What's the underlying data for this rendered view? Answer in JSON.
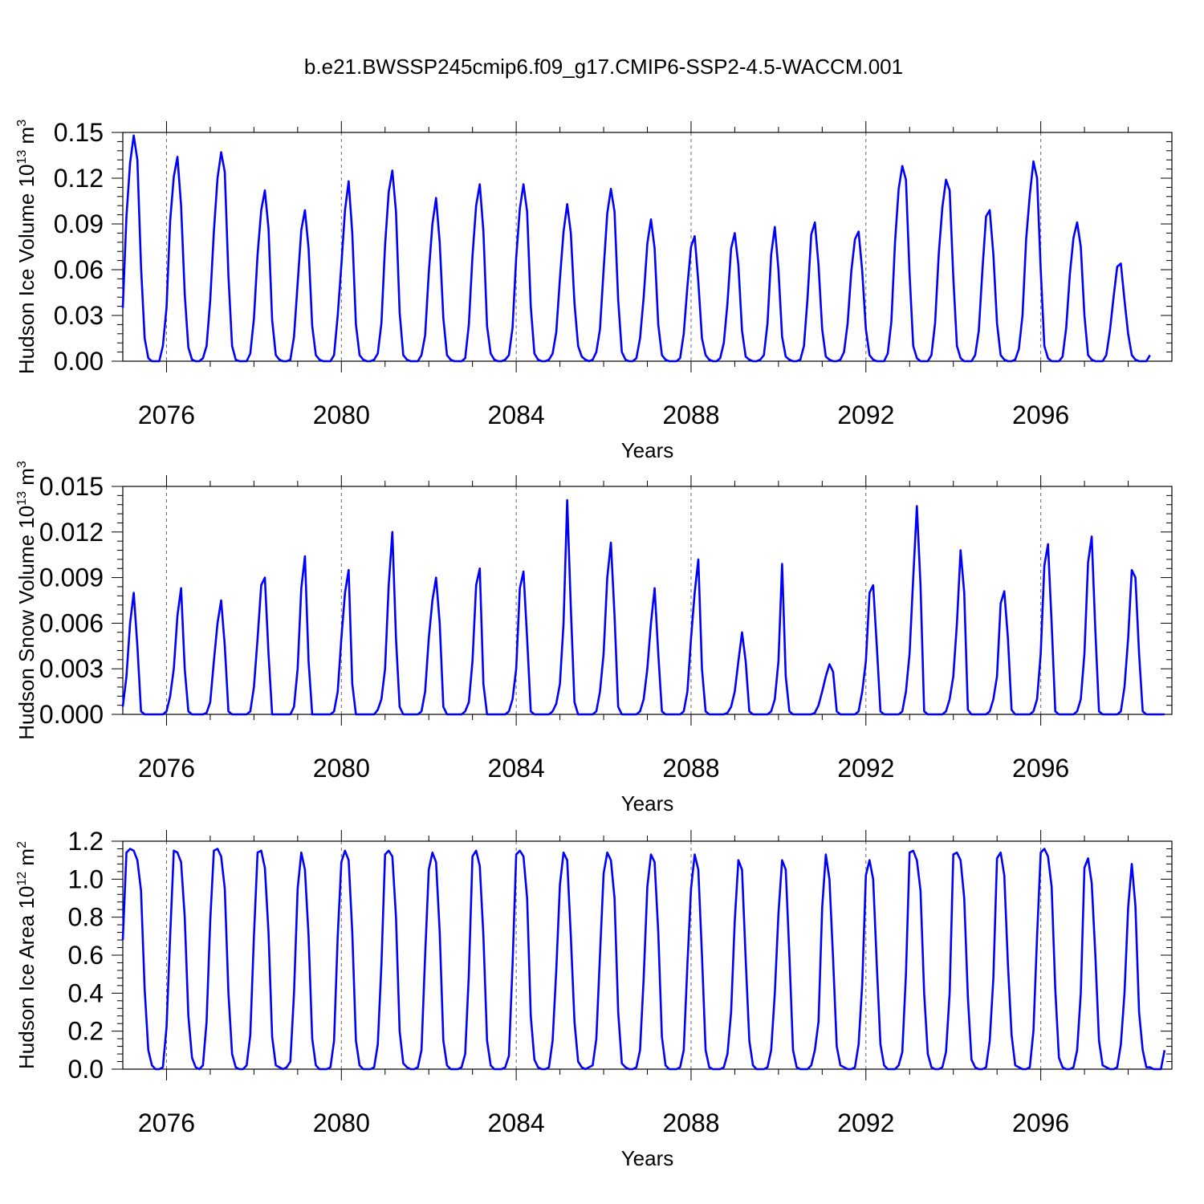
{
  "figure": {
    "title": "b.e21.BWSSP245cmip6.f09_g17.CMIP6-SSP2-4.5-WACCM.001",
    "line_color": "#0000ff",
    "start_year": 2075,
    "end_year": 2099,
    "xticks": [
      2076,
      2080,
      2084,
      2088,
      2092,
      2096
    ],
    "xticklabels": [
      "2076",
      "2080",
      "2084",
      "2088",
      "2092",
      "2096"
    ]
  },
  "chart_data": [
    {
      "type": "line",
      "title": "",
      "xlabel": "Years",
      "ylabel_main": "Hudson Ice Volume 10",
      "ylabel_exp": "13",
      "ylabel_unit": " m",
      "ylabel_unit_exp": "3",
      "ylim": [
        0,
        0.15
      ],
      "yticks": [
        0,
        0.03,
        0.06,
        0.09,
        0.12,
        0.15
      ],
      "yticklabels": [
        "0.00",
        "0.03",
        "0.06",
        "0.09",
        "0.12",
        "0.15"
      ],
      "xlim": [
        2075,
        2099
      ],
      "series": [
        {
          "name": "Hudson Ice Volume",
          "start_x": 2075.0,
          "step": 0.08333,
          "values": [
            0.035,
            0.095,
            0.13,
            0.148,
            0.132,
            0.062,
            0.015,
            0.002,
            0,
            0,
            0,
            0.01,
            0.035,
            0.092,
            0.121,
            0.134,
            0.102,
            0.044,
            0.009,
            0.001,
            0,
            0,
            0.002,
            0.01,
            0.04,
            0.085,
            0.12,
            0.137,
            0.124,
            0.056,
            0.01,
            0.001,
            0,
            0,
            0,
            0.005,
            0.028,
            0.07,
            0.099,
            0.112,
            0.087,
            0.027,
            0.004,
            0.001,
            0,
            0,
            0.001,
            0.016,
            0.051,
            0.086,
            0.099,
            0.074,
            0.023,
            0.004,
            0.001,
            0,
            0,
            0,
            0.004,
            0.03,
            0.063,
            0.099,
            0.118,
            0.084,
            0.024,
            0.004,
            0.001,
            0,
            0,
            0.001,
            0.005,
            0.025,
            0.076,
            0.111,
            0.125,
            0.098,
            0.032,
            0.004,
            0.001,
            0,
            0,
            0,
            0.004,
            0.017,
            0.058,
            0.09,
            0.107,
            0.078,
            0.028,
            0.004,
            0.001,
            0,
            0,
            0,
            0.002,
            0.024,
            0.069,
            0.102,
            0.116,
            0.085,
            0.023,
            0.005,
            0.001,
            0,
            0,
            0.001,
            0.004,
            0.022,
            0.068,
            0.1,
            0.116,
            0.098,
            0.036,
            0.005,
            0.001,
            0,
            0,
            0.001,
            0.005,
            0.019,
            0.054,
            0.085,
            0.103,
            0.084,
            0.038,
            0.01,
            0.003,
            0.001,
            0,
            0.001,
            0.006,
            0.021,
            0.06,
            0.097,
            0.113,
            0.098,
            0.04,
            0.006,
            0.001,
            0,
            0,
            0.002,
            0.015,
            0.042,
            0.077,
            0.093,
            0.074,
            0.024,
            0.004,
            0.001,
            0,
            0,
            0,
            0.002,
            0.018,
            0.049,
            0.075,
            0.082,
            0.052,
            0.015,
            0.004,
            0.001,
            0,
            0,
            0.002,
            0.012,
            0.038,
            0.074,
            0.084,
            0.063,
            0.02,
            0.003,
            0.001,
            0,
            0,
            0.001,
            0.004,
            0.025,
            0.07,
            0.088,
            0.06,
            0.016,
            0.003,
            0.001,
            0,
            0,
            0.001,
            0.01,
            0.042,
            0.083,
            0.091,
            0.063,
            0.021,
            0.003,
            0.001,
            0,
            0,
            0.001,
            0.006,
            0.025,
            0.059,
            0.08,
            0.085,
            0.059,
            0.021,
            0.004,
            0.001,
            0,
            0,
            0,
            0.005,
            0.026,
            0.078,
            0.113,
            0.128,
            0.119,
            0.057,
            0.01,
            0.002,
            0,
            0,
            0,
            0.004,
            0.025,
            0.07,
            0.101,
            0.119,
            0.112,
            0.055,
            0.01,
            0.002,
            0,
            0,
            0,
            0.004,
            0.02,
            0.06,
            0.095,
            0.099,
            0.07,
            0.025,
            0.004,
            0.001,
            0,
            0,
            0.001,
            0.008,
            0.03,
            0.08,
            0.109,
            0.131,
            0.12,
            0.06,
            0.01,
            0.002,
            0,
            0,
            0,
            0.003,
            0.022,
            0.057,
            0.081,
            0.091,
            0.075,
            0.03,
            0.004,
            0.001,
            0,
            0,
            0,
            0.004,
            0.02,
            0.042,
            0.062,
            0.064,
            0.04,
            0.018,
            0.004,
            0.001,
            0,
            0,
            0,
            0.004
          ]
        }
      ]
    },
    {
      "type": "line",
      "title": "",
      "xlabel": "Years",
      "ylabel_main": "Hudson Snow Volume 10",
      "ylabel_exp": "13",
      "ylabel_unit": " m",
      "ylabel_unit_exp": "3",
      "ylim": [
        0,
        0.015
      ],
      "yticks": [
        0,
        0.003,
        0.006,
        0.009,
        0.012,
        0.015
      ],
      "yticklabels": [
        "0.000",
        "0.003",
        "0.006",
        "0.009",
        "0.012",
        "0.015"
      ],
      "xlim": [
        2075,
        2099
      ],
      "series": [
        {
          "name": "Hudson Snow Volume",
          "start_x": 2075.0,
          "step": 0.08333,
          "values": [
            0.0005,
            0.0025,
            0.006,
            0.008,
            0.0045,
            0.0002,
            0,
            0,
            0,
            0,
            0,
            0,
            0.0002,
            0.0012,
            0.003,
            0.0065,
            0.0083,
            0.003,
            0.0002,
            0,
            0,
            0,
            0,
            0.0001,
            0.0008,
            0.0035,
            0.006,
            0.0075,
            0.0045,
            0.0002,
            0,
            0,
            0,
            0,
            0,
            0.0002,
            0.0018,
            0.005,
            0.0085,
            0.009,
            0.004,
            0,
            0,
            0,
            0,
            0,
            0,
            0.0005,
            0.003,
            0.0083,
            0.0104,
            0.0035,
            0,
            0,
            0,
            0,
            0,
            0,
            0.0002,
            0.0015,
            0.005,
            0.008,
            0.0095,
            0.002,
            0,
            0,
            0,
            0,
            0,
            0,
            0.0003,
            0.001,
            0.003,
            0.0085,
            0.012,
            0.005,
            0.0005,
            0,
            0,
            0,
            0,
            0,
            0.0002,
            0.0015,
            0.005,
            0.0075,
            0.009,
            0.006,
            0.0005,
            0,
            0,
            0,
            0,
            0,
            0.0002,
            0.0008,
            0.0035,
            0.0085,
            0.0096,
            0.002,
            0,
            0,
            0,
            0,
            0,
            0,
            0.0002,
            0.001,
            0.003,
            0.0083,
            0.0094,
            0.005,
            0.0002,
            0,
            0,
            0,
            0,
            0,
            0.0002,
            0.0007,
            0.002,
            0.006,
            0.0141,
            0.007,
            0.0008,
            0,
            0,
            0,
            0,
            0,
            0.0002,
            0.0015,
            0.004,
            0.009,
            0.0113,
            0.0065,
            0.0005,
            0,
            0,
            0,
            0,
            0,
            0.0002,
            0.001,
            0.003,
            0.006,
            0.0083,
            0.004,
            0.0002,
            0,
            0,
            0,
            0,
            0,
            0.0002,
            0.0015,
            0.005,
            0.008,
            0.0102,
            0.003,
            0.0002,
            0,
            0,
            0,
            0,
            0,
            0.0001,
            0.0005,
            0.0015,
            0.0035,
            0.0054,
            0.0035,
            0.0002,
            0,
            0,
            0,
            0,
            0,
            0.0002,
            0.001,
            0.0035,
            0.0099,
            0.0025,
            0.0002,
            0,
            0,
            0,
            0,
            0,
            0,
            0.0001,
            0.0006,
            0.0015,
            0.0025,
            0.0033,
            0.0028,
            0.0002,
            0,
            0,
            0,
            0,
            0,
            0.0002,
            0.0015,
            0.0035,
            0.008,
            0.0085,
            0.0045,
            0.0002,
            0,
            0,
            0,
            0,
            0,
            0.0002,
            0.0015,
            0.004,
            0.009,
            0.0137,
            0.0085,
            0.0002,
            0,
            0,
            0,
            0,
            0,
            0.0002,
            0.001,
            0.0025,
            0.006,
            0.0108,
            0.008,
            0.0003,
            0,
            0,
            0,
            0,
            0,
            0.0002,
            0.001,
            0.0025,
            0.0073,
            0.0081,
            0.005,
            0.0003,
            0,
            0,
            0,
            0,
            0,
            0.0002,
            0.001,
            0.004,
            0.0098,
            0.0112,
            0.006,
            0.0002,
            0,
            0,
            0,
            0,
            0,
            0.0002,
            0.001,
            0.004,
            0.01,
            0.0117,
            0.0055,
            0.0002,
            0,
            0,
            0,
            0,
            0,
            0.0002,
            0.0018,
            0.005,
            0.0095,
            0.009,
            0.004,
            0.0002,
            0,
            0,
            0,
            0,
            0,
            0
          ]
        }
      ]
    },
    {
      "type": "line",
      "title": "",
      "xlabel": "Years",
      "ylabel_main": "Hudson Ice Area 10",
      "ylabel_exp": "12",
      "ylabel_unit": " m",
      "ylabel_unit_exp": "2",
      "ylim": [
        0,
        1.2
      ],
      "yticks": [
        0,
        0.2,
        0.4,
        0.6,
        0.8,
        1.0,
        1.2
      ],
      "yticklabels": [
        "0.0",
        "0.2",
        "0.4",
        "0.6",
        "0.8",
        "1.0",
        "1.2"
      ],
      "xlim": [
        2075,
        2099
      ],
      "series": [
        {
          "name": "Hudson Ice Area",
          "start_x": 2075.0,
          "step": 0.08333,
          "values": [
            0.68,
            1.14,
            1.16,
            1.15,
            1.1,
            0.94,
            0.42,
            0.1,
            0.02,
            0,
            0,
            0.01,
            0.22,
            0.7,
            1.15,
            1.14,
            1.09,
            0.8,
            0.28,
            0.06,
            0.01,
            0,
            0.02,
            0.25,
            0.78,
            1.15,
            1.16,
            1.12,
            0.95,
            0.4,
            0.08,
            0.01,
            0,
            0,
            0.02,
            0.18,
            0.7,
            1.14,
            1.15,
            1.06,
            0.72,
            0.17,
            0.02,
            0.01,
            0,
            0.01,
            0.04,
            0.4,
            0.95,
            1.14,
            1.05,
            0.7,
            0.16,
            0.02,
            0,
            0,
            0,
            0.01,
            0.15,
            0.7,
            1.09,
            1.15,
            1.1,
            0.72,
            0.15,
            0.02,
            0,
            0,
            0,
            0.01,
            0.13,
            0.55,
            1.13,
            1.15,
            1.12,
            0.8,
            0.2,
            0.03,
            0.01,
            0,
            0,
            0.01,
            0.1,
            0.6,
            1.05,
            1.14,
            1.09,
            0.72,
            0.15,
            0.02,
            0,
            0,
            0,
            0.01,
            0.08,
            0.5,
            1.12,
            1.15,
            1.07,
            0.7,
            0.15,
            0.02,
            0,
            0,
            0,
            0.01,
            0.07,
            0.55,
            1.13,
            1.15,
            1.12,
            0.9,
            0.28,
            0.05,
            0.01,
            0,
            0,
            0.01,
            0.15,
            0.52,
            0.97,
            1.14,
            1.1,
            0.7,
            0.25,
            0.04,
            0.01,
            0,
            0.01,
            0.02,
            0.16,
            0.6,
            1.03,
            1.14,
            1.1,
            0.9,
            0.3,
            0.03,
            0.01,
            0,
            0,
            0.01,
            0.1,
            0.48,
            0.96,
            1.13,
            1.09,
            0.72,
            0.17,
            0.02,
            0,
            0,
            0,
            0.01,
            0.1,
            0.55,
            0.95,
            1.13,
            1.05,
            0.6,
            0.1,
            0.01,
            0,
            0,
            0,
            0.01,
            0.08,
            0.3,
            0.78,
            1.1,
            1.05,
            0.58,
            0.15,
            0.02,
            0,
            0,
            0,
            0.01,
            0.1,
            0.4,
            0.82,
            1.1,
            1.05,
            0.6,
            0.1,
            0.01,
            0,
            0,
            0,
            0.02,
            0.1,
            0.25,
            0.85,
            1.13,
            1.0,
            0.58,
            0.12,
            0.02,
            0.01,
            0,
            0,
            0.01,
            0.13,
            0.45,
            1.02,
            1.1,
            1.0,
            0.55,
            0.13,
            0.02,
            0,
            0,
            0,
            0.02,
            0.09,
            0.5,
            1.14,
            1.15,
            1.1,
            0.94,
            0.4,
            0.08,
            0.01,
            0,
            0,
            0.01,
            0.09,
            0.4,
            1.13,
            1.14,
            1.1,
            0.9,
            0.38,
            0.05,
            0.01,
            0,
            0,
            0.01,
            0.15,
            0.48,
            1.11,
            1.14,
            1.02,
            0.55,
            0.18,
            0.02,
            0.01,
            0,
            0,
            0.01,
            0.2,
            0.7,
            1.14,
            1.16,
            1.12,
            0.96,
            0.42,
            0.06,
            0.01,
            0,
            0,
            0.01,
            0.1,
            0.4,
            1.06,
            1.11,
            0.98,
            0.6,
            0.15,
            0.02,
            0.01,
            0,
            0,
            0.01,
            0.13,
            0.4,
            0.85,
            1.08,
            0.86,
            0.3,
            0.1,
            0.01,
            0.01,
            0,
            0,
            0,
            0.1
          ]
        }
      ]
    }
  ]
}
